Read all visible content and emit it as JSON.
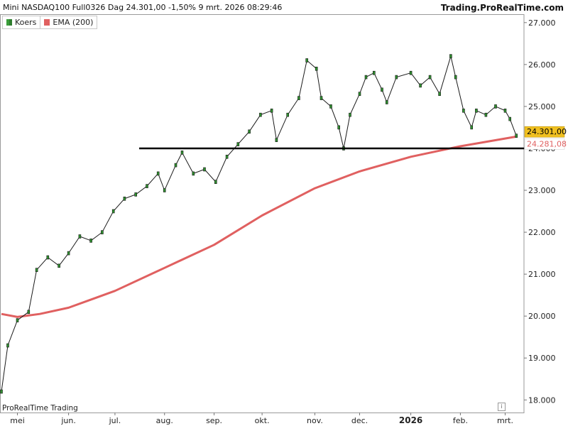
{
  "header": {
    "title": "Mini NASDAQ100 Full0326 Dag 24.301,00 -1,50% 9 mrt. 2026 08:29:46",
    "brand": "Trading.ProRealTime.com"
  },
  "legend": {
    "koers": "Koers",
    "ema": "EMA (200)"
  },
  "footer": {
    "watermark": "ProRealTime Trading",
    "info_icon": "i"
  },
  "chart_data": {
    "type": "line",
    "title": "Mini NASDAQ100 Full0326 Dag",
    "ylim": [
      17700,
      27200
    ],
    "y_ticks": [
      {
        "label": "27.000",
        "value": 27000
      },
      {
        "label": "26.000",
        "value": 26000
      },
      {
        "label": "25.000",
        "value": 25000
      },
      {
        "label": "24.000",
        "value": 24000
      },
      {
        "label": "23.000",
        "value": 23000
      },
      {
        "label": "22.000",
        "value": 22000
      },
      {
        "label": "21.000",
        "value": 21000
      },
      {
        "label": "20.000",
        "value": 20000
      },
      {
        "label": "19.000",
        "value": 19000
      },
      {
        "label": "18.000",
        "value": 18000
      }
    ],
    "x_ticks": [
      {
        "label": "mei",
        "date": "2025-05-01"
      },
      {
        "label": "jun.",
        "date": "2025-06-02"
      },
      {
        "label": "jul.",
        "date": "2025-07-01"
      },
      {
        "label": "aug.",
        "date": "2025-08-01"
      },
      {
        "label": "sep.",
        "date": "2025-09-01"
      },
      {
        "label": "okt.",
        "date": "2025-10-01"
      },
      {
        "label": "nov.",
        "date": "2025-11-03"
      },
      {
        "label": "dec.",
        "date": "2025-12-01"
      },
      {
        "label": "2026",
        "date": "2026-01-02",
        "bold": true
      },
      {
        "label": "feb.",
        "date": "2026-02-02"
      },
      {
        "label": "mrt.",
        "date": "2026-03-02"
      }
    ],
    "series": [
      {
        "name": "Koers",
        "color": "#2f8f2f",
        "points": [
          [
            "2025-04-21",
            18200
          ],
          [
            "2025-04-25",
            19300
          ],
          [
            "2025-05-01",
            19900
          ],
          [
            "2025-05-08",
            20100
          ],
          [
            "2025-05-13",
            21100
          ],
          [
            "2025-05-20",
            21400
          ],
          [
            "2025-05-27",
            21200
          ],
          [
            "2025-06-02",
            21500
          ],
          [
            "2025-06-09",
            21900
          ],
          [
            "2025-06-16",
            21800
          ],
          [
            "2025-06-23",
            22000
          ],
          [
            "2025-06-30",
            22500
          ],
          [
            "2025-07-07",
            22800
          ],
          [
            "2025-07-14",
            22900
          ],
          [
            "2025-07-21",
            23100
          ],
          [
            "2025-07-28",
            23400
          ],
          [
            "2025-08-01",
            23000
          ],
          [
            "2025-08-08",
            23600
          ],
          [
            "2025-08-12",
            23900
          ],
          [
            "2025-08-19",
            23400
          ],
          [
            "2025-08-26",
            23500
          ],
          [
            "2025-09-02",
            23200
          ],
          [
            "2025-09-09",
            23800
          ],
          [
            "2025-09-16",
            24100
          ],
          [
            "2025-09-23",
            24400
          ],
          [
            "2025-09-30",
            24800
          ],
          [
            "2025-10-07",
            24900
          ],
          [
            "2025-10-10",
            24200
          ],
          [
            "2025-10-17",
            24800
          ],
          [
            "2025-10-24",
            25200
          ],
          [
            "2025-10-29",
            26100
          ],
          [
            "2025-11-04",
            25900
          ],
          [
            "2025-11-07",
            25200
          ],
          [
            "2025-11-13",
            25000
          ],
          [
            "2025-11-18",
            24500
          ],
          [
            "2025-11-21",
            24000
          ],
          [
            "2025-11-25",
            24800
          ],
          [
            "2025-12-01",
            25300
          ],
          [
            "2025-12-05",
            25700
          ],
          [
            "2025-12-10",
            25800
          ],
          [
            "2025-12-15",
            25400
          ],
          [
            "2025-12-18",
            25100
          ],
          [
            "2025-12-24",
            25700
          ],
          [
            "2026-01-02",
            25800
          ],
          [
            "2026-01-08",
            25500
          ],
          [
            "2026-01-14",
            25700
          ],
          [
            "2026-01-20",
            25300
          ],
          [
            "2026-01-27",
            26200
          ],
          [
            "2026-01-30",
            25700
          ],
          [
            "2026-02-04",
            24900
          ],
          [
            "2026-02-09",
            24500
          ],
          [
            "2026-02-12",
            24900
          ],
          [
            "2026-02-18",
            24800
          ],
          [
            "2026-02-24",
            25000
          ],
          [
            "2026-03-02",
            24900
          ],
          [
            "2026-03-05",
            24700
          ],
          [
            "2026-03-09",
            24301
          ]
        ]
      },
      {
        "name": "EMA (200)",
        "color": "#e06060",
        "points": [
          [
            "2025-04-21",
            20050
          ],
          [
            "2025-05-01",
            19980
          ],
          [
            "2025-05-15",
            20050
          ],
          [
            "2025-06-02",
            20200
          ],
          [
            "2025-07-01",
            20600
          ],
          [
            "2025-08-01",
            21150
          ],
          [
            "2025-09-01",
            21700
          ],
          [
            "2025-10-01",
            22400
          ],
          [
            "2025-11-03",
            23050
          ],
          [
            "2025-12-01",
            23450
          ],
          [
            "2026-01-02",
            23800
          ],
          [
            "2026-02-02",
            24050
          ],
          [
            "2026-03-09",
            24281
          ]
        ]
      }
    ],
    "support_level": 24000,
    "last_price": {
      "label": "24.301,00",
      "value": 24301,
      "color": "#f0c020"
    },
    "ema_last": {
      "label": "24.281,08",
      "value": 24281.08,
      "color": "#e06060"
    },
    "grid": false
  }
}
